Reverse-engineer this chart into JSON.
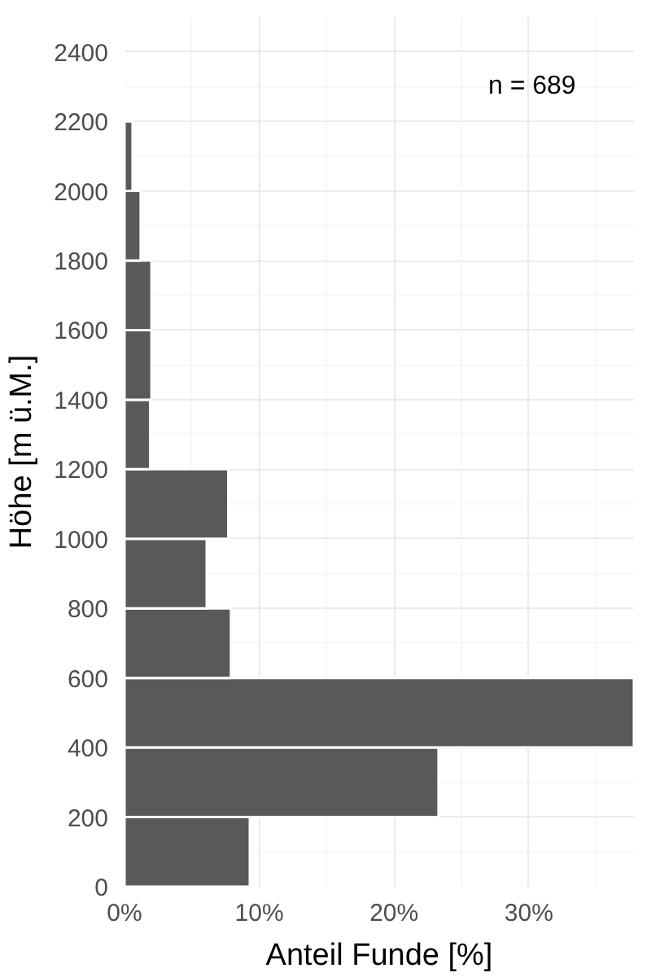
{
  "chart_data": {
    "type": "histogram",
    "orientation": "horizontal",
    "bins": [
      0,
      200,
      400,
      600,
      800,
      1000,
      1200,
      1400,
      1600,
      1800,
      2000,
      2200
    ],
    "values": [
      9.3,
      23.3,
      37.8,
      7.9,
      6.1,
      7.7,
      1.9,
      2.0,
      2.0,
      1.2,
      0.6
    ],
    "color": "#595959",
    "xlabel": "Anteil Funde [%]",
    "ylabel": "Höhe [m ü.M.]",
    "annotations": [
      "n = 689"
    ],
    "xlim": [
      0,
      37.8
    ],
    "ylim": [
      0,
      2500
    ],
    "xticks": [
      {
        "value": 0,
        "label": "0%"
      },
      {
        "value": 10,
        "label": "10%"
      },
      {
        "value": 20,
        "label": "20%"
      },
      {
        "value": 30,
        "label": "30%"
      }
    ],
    "yticks": [
      0,
      200,
      400,
      600,
      800,
      1000,
      1200,
      1400,
      1600,
      1800,
      2000,
      2200,
      2400
    ],
    "grid": true
  }
}
